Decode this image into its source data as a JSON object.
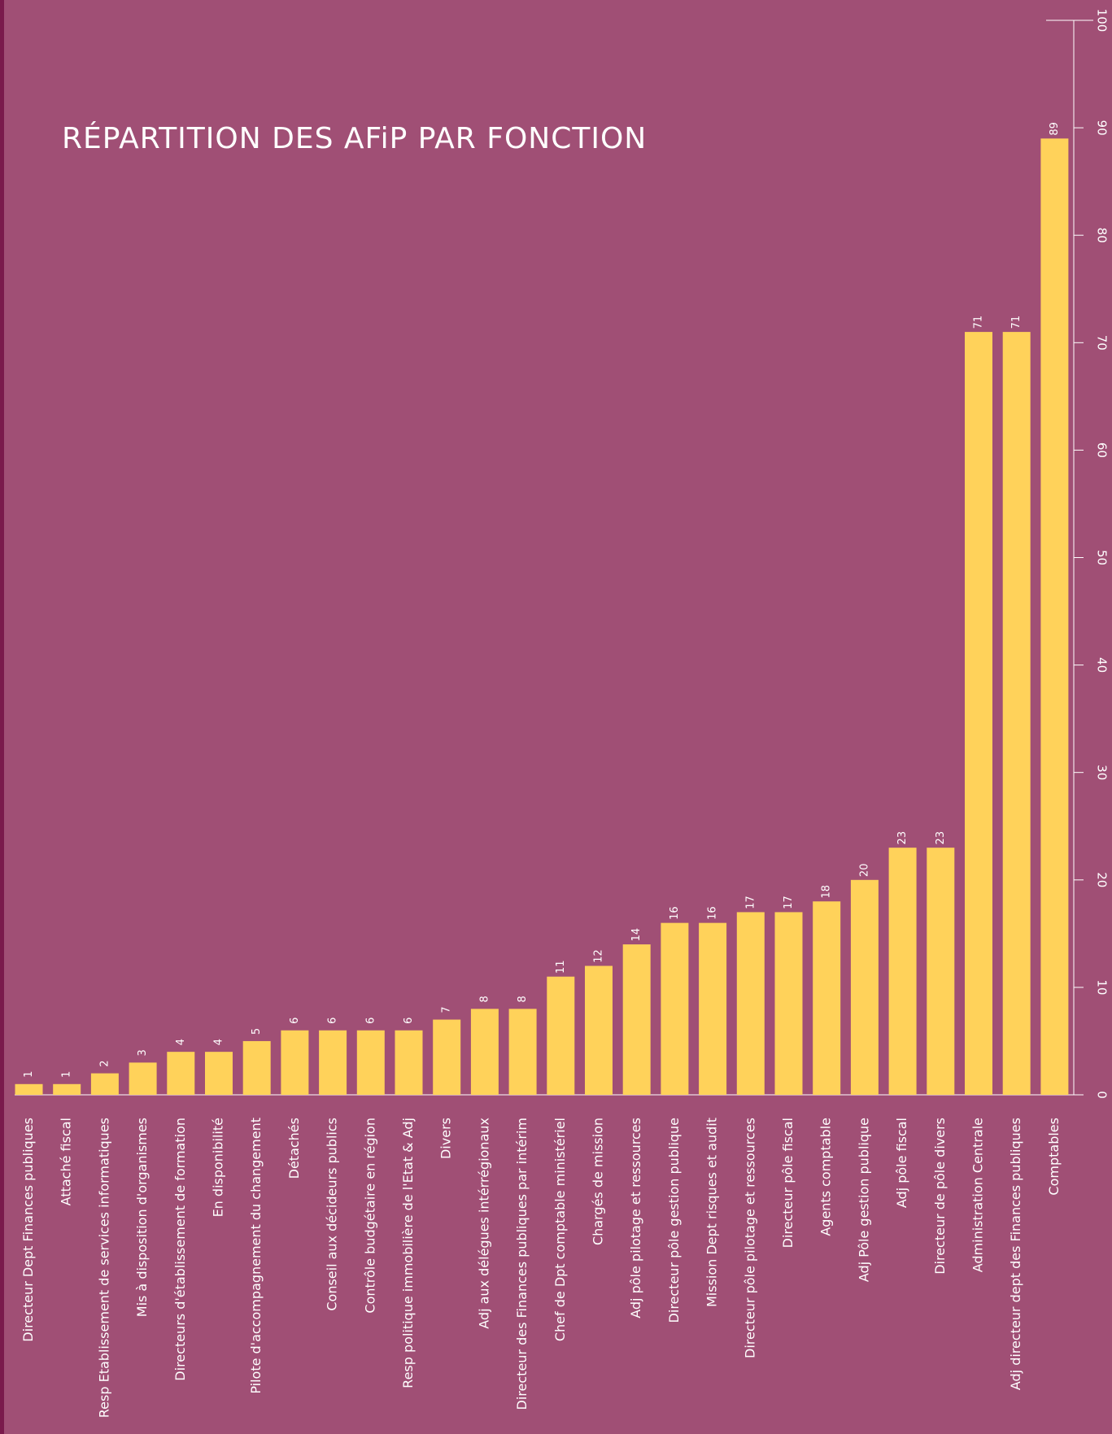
{
  "chart_data": {
    "type": "bar",
    "title": "RÉPARTITION DES AFiP PAR FONCTION",
    "categories": [
      "Directeur Dept Finances publiques",
      "Attaché fiscal",
      "Resp Etablissement de services informatiques",
      "Mis à disposition d'organismes",
      "Directeurs d'établissement de formation",
      "En disponibilité",
      "Pilote d'accompagnement du changement",
      "Détachés",
      "Conseil aux décideurs publics",
      "Contrôle budgétaire en région",
      "Resp politique immobilière de l'Etat & Adj",
      "Divers",
      "Adj aux délégues intérrégionaux",
      "Directeur des Finances publiques par intérim",
      "Chef de Dpt comptable ministériel",
      "Chargés de mission",
      "Adj pôle pilotage et ressources",
      "Directeur pôle gestion publique",
      "Mission Dept risques et audit",
      "Directeur pôle pilotage et ressources",
      "Directeur pôle fiscal",
      "Agents comptable",
      "Adj Pôle gestion publique",
      "Adj pôle fiscal",
      "Directeur de pôle divers",
      "Administration Centrale",
      "Adj directeur dept des Finances publiques",
      "Comptables"
    ],
    "values": [
      1,
      1,
      2,
      3,
      4,
      4,
      5,
      6,
      6,
      6,
      6,
      7,
      8,
      8,
      11,
      12,
      14,
      16,
      16,
      17,
      17,
      18,
      20,
      23,
      23,
      71,
      71,
      89
    ],
    "ylim": [
      0,
      100
    ],
    "yticks": [
      "0",
      "10",
      "20",
      "30",
      "40",
      "50",
      "60",
      "70",
      "80",
      "90",
      "100"
    ],
    "axis_position": "right",
    "grid": false,
    "colors": {
      "background": "#a04f75",
      "bar": "#ffd25a",
      "text": "#ffffff",
      "edge": "#7a1a4c"
    }
  }
}
